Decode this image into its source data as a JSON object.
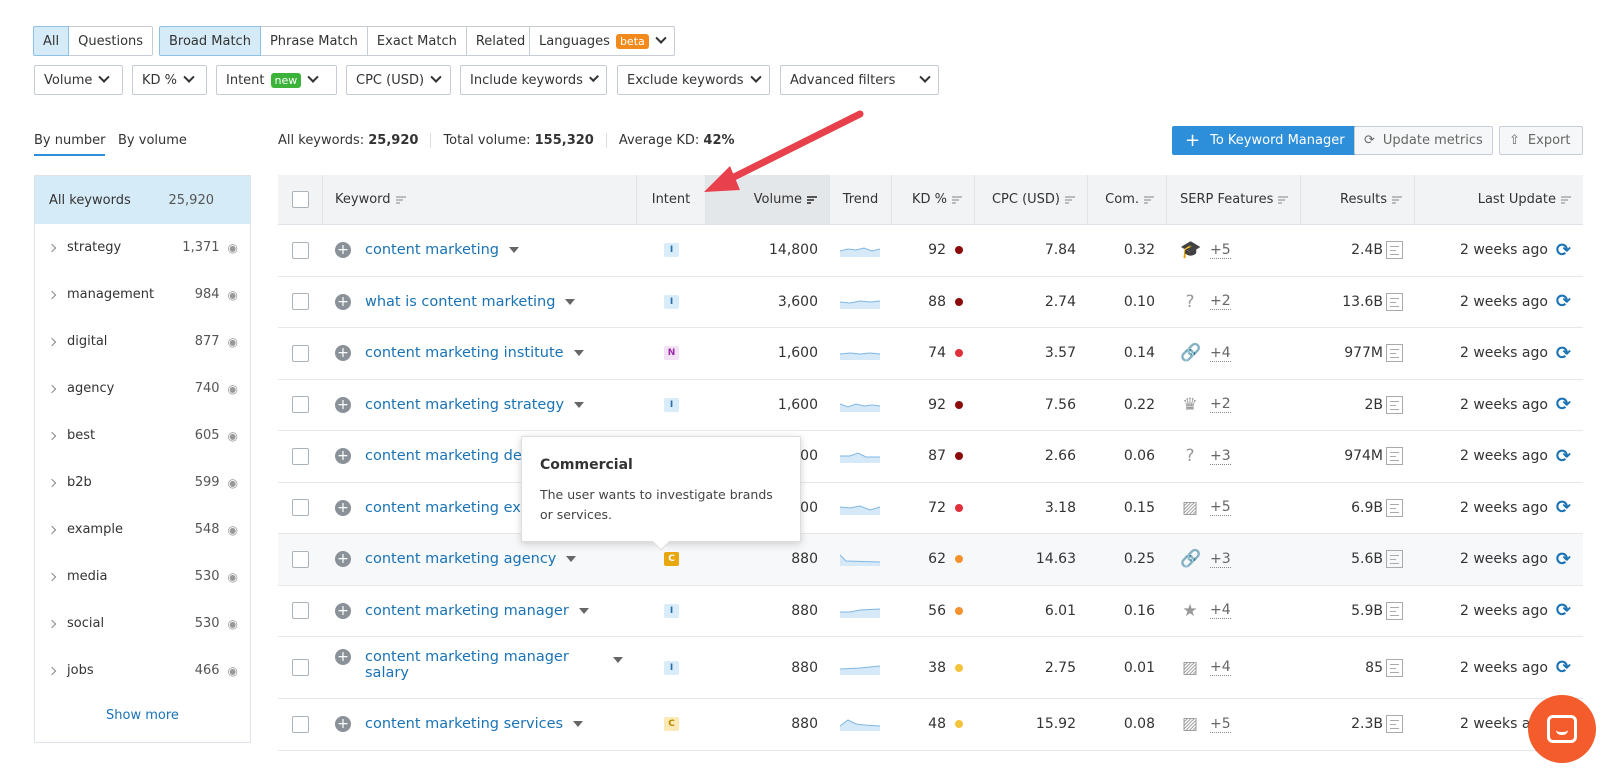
{
  "filters_row1": {
    "type_tabs": [
      "All",
      "Questions"
    ],
    "match_tabs": [
      "Broad Match",
      "Phrase Match",
      "Exact Match",
      "Related"
    ],
    "languages": "Languages",
    "languages_badge": "beta"
  },
  "filters_row2": {
    "volume": "Volume",
    "kd": "KD %",
    "intent": "Intent",
    "intent_badge": "new",
    "cpc": "CPC (USD)",
    "include": "Include keywords",
    "exclude": "Exclude keywords",
    "advanced": "Advanced filters"
  },
  "side_tabs": [
    "By number",
    "By volume"
  ],
  "summary": {
    "all_label": "All keywords:",
    "all_value": "25,920",
    "vol_label": "Total volume:",
    "vol_value": "155,320",
    "kd_label": "Average KD:",
    "kd_value": "42%"
  },
  "actions": {
    "keyword_manager": "To Keyword Manager",
    "update": "Update metrics",
    "export": "Export"
  },
  "sidebar": {
    "all_label": "All keywords",
    "all_count": "25,920",
    "items": [
      {
        "label": "strategy",
        "count": "1,371"
      },
      {
        "label": "management",
        "count": "984"
      },
      {
        "label": "digital",
        "count": "877"
      },
      {
        "label": "agency",
        "count": "740"
      },
      {
        "label": "best",
        "count": "605"
      },
      {
        "label": "b2b",
        "count": "599"
      },
      {
        "label": "example",
        "count": "548"
      },
      {
        "label": "media",
        "count": "530"
      },
      {
        "label": "social",
        "count": "530"
      },
      {
        "label": "jobs",
        "count": "466"
      }
    ],
    "show_more": "Show more"
  },
  "columns": [
    "Keyword",
    "Intent",
    "Volume",
    "Trend",
    "KD %",
    "CPC (USD)",
    "Com.",
    "SERP Features",
    "Results",
    "Last Update"
  ],
  "rows": [
    {
      "keyword": "content marketing",
      "intent": "I",
      "volume": "14,800",
      "kd": "92",
      "kd_color": "#8b0a0a",
      "cpc": "7.84",
      "com": "0.32",
      "serp_icon": "graduation-cap",
      "serp": "+5",
      "results": "2.4B",
      "updated": "2 weeks ago"
    },
    {
      "keyword": "what is content marketing",
      "intent": "I",
      "volume": "3,600",
      "kd": "88",
      "kd_color": "#8b0a0a",
      "cpc": "2.74",
      "com": "0.10",
      "serp_icon": "question",
      "serp": "+2",
      "results": "13.6B",
      "updated": "2 weeks ago"
    },
    {
      "keyword": "content marketing institute",
      "intent": "N",
      "volume": "1,600",
      "kd": "74",
      "kd_color": "#e0303a",
      "cpc": "3.57",
      "com": "0.14",
      "serp_icon": "link",
      "serp": "+4",
      "results": "977M",
      "updated": "2 weeks ago"
    },
    {
      "keyword": "content marketing strategy",
      "intent": "I",
      "volume": "1,600",
      "kd": "92",
      "kd_color": "#8b0a0a",
      "cpc": "7.56",
      "com": "0.22",
      "serp_icon": "crown",
      "serp": "+2",
      "results": "2B",
      "updated": "2 weeks ago"
    },
    {
      "keyword": "content marketing de",
      "intent": "",
      "volume": "00",
      "kd": "87",
      "kd_color": "#8b0a0a",
      "cpc": "2.66",
      "com": "0.06",
      "serp_icon": "question",
      "serp": "+3",
      "results": "974M",
      "updated": "2 weeks ago"
    },
    {
      "keyword": "content marketing ex",
      "intent": "",
      "volume": "00",
      "kd": "72",
      "kd_color": "#e0303a",
      "cpc": "3.18",
      "com": "0.15",
      "serp_icon": "image",
      "serp": "+5",
      "results": "6.9B",
      "updated": "2 weeks ago"
    },
    {
      "keyword": "content marketing agency",
      "intent": "C",
      "volume": "880",
      "kd": "62",
      "kd_color": "#f5922f",
      "cpc": "14.63",
      "com": "0.25",
      "serp_icon": "link",
      "serp": "+3",
      "results": "5.6B",
      "updated": "2 weeks ago"
    },
    {
      "keyword": "content marketing manager",
      "intent": "I",
      "volume": "880",
      "kd": "56",
      "kd_color": "#f5922f",
      "cpc": "6.01",
      "com": "0.16",
      "serp_icon": "star",
      "serp": "+4",
      "results": "5.9B",
      "updated": "2 weeks ago"
    },
    {
      "keyword": "content marketing manager salary",
      "intent": "I",
      "volume": "880",
      "kd": "38",
      "kd_color": "#f5c33b",
      "cpc": "2.75",
      "com": "0.01",
      "serp_icon": "image",
      "serp": "+4",
      "results": "85",
      "updated": "2 weeks ago"
    },
    {
      "keyword": "content marketing services",
      "intent": "C",
      "volume": "880",
      "kd": "48",
      "kd_color": "#f5c33b",
      "cpc": "15.92",
      "com": "0.08",
      "serp_icon": "image",
      "serp": "+5",
      "results": "2.3B",
      "updated": "2 weeks ago"
    }
  ],
  "tooltip": {
    "title": "Commercial",
    "text": "The user wants to investigate brands or services."
  },
  "colors": {
    "accent": "#2d8fd9",
    "intercom": "#f45d2b",
    "arrow": "#e8414b"
  }
}
